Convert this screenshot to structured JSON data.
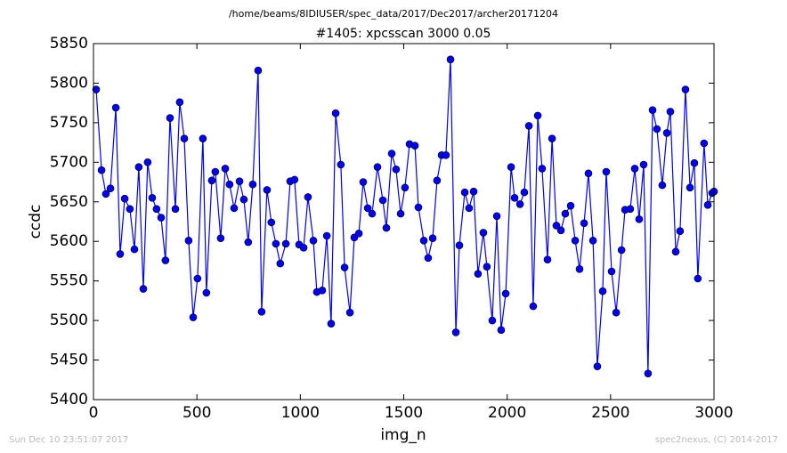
{
  "chart_data": {
    "type": "line",
    "title": "/home/beams/8IDIUSER/spec_data/2017/Dec2017/archer20171204",
    "subtitle": "#1405: xpcsscan 3000 0.05",
    "xlabel": "img_n",
    "ylabel": "ccdc",
    "footer_left": "Sun Dec 10 23:51:07 2017",
    "footer_right": "spec2nexus, (C) 2014-2017",
    "color": "#0000ff",
    "markers": true,
    "xlim": [
      0,
      3000
    ],
    "xticks": [
      0,
      500,
      1000,
      1500,
      2000,
      2500,
      3000
    ],
    "ylim": [
      5400,
      5850
    ],
    "yticks": [
      5400,
      5450,
      5500,
      5550,
      5600,
      5650,
      5700,
      5750,
      5800,
      5850
    ],
    "x": [
      13,
      39,
      60,
      82,
      108,
      129,
      151,
      176,
      198,
      219,
      241,
      262,
      284,
      305,
      327,
      348,
      370,
      396,
      417,
      439,
      460,
      482,
      503,
      529,
      546,
      572,
      589,
      615,
      637,
      658,
      680,
      706,
      727,
      748,
      770,
      796,
      813,
      839,
      860,
      882,
      903,
      930,
      951,
      972,
      994,
      1016,
      1037,
      1063,
      1080,
      1106,
      1128,
      1149,
      1171,
      1196,
      1214,
      1240,
      1261,
      1283,
      1304,
      1326,
      1347,
      1373,
      1399,
      1416,
      1442,
      1463,
      1485,
      1506,
      1528,
      1554,
      1571,
      1597,
      1618,
      1640,
      1661,
      1683,
      1704,
      1726,
      1752,
      1769,
      1795,
      1816,
      1838,
      1859,
      1885,
      1902,
      1928,
      1950,
      1971,
      1993,
      2019,
      2036,
      2062,
      2083,
      2105,
      2126,
      2148,
      2169,
      2195,
      2217,
      2238,
      2260,
      2281,
      2307,
      2329,
      2350,
      2372,
      2393,
      2415,
      2436,
      2462,
      2479,
      2505,
      2527,
      2553,
      2570,
      2595,
      2617,
      2638,
      2660,
      2681,
      2703,
      2724,
      2750,
      2772,
      2789,
      2815,
      2836,
      2862,
      2884,
      2905,
      2922,
      2952,
      2970,
      2991,
      3000
    ],
    "values": [
      5792,
      5690,
      5660,
      5667,
      5769,
      5584,
      5654,
      5641,
      5590,
      5694,
      5540,
      5700,
      5655,
      5641,
      5630,
      5576,
      5756,
      5641,
      5776,
      5730,
      5601,
      5504,
      5553,
      5730,
      5535,
      5677,
      5688,
      5604,
      5692,
      5672,
      5642,
      5676,
      5653,
      5599,
      5672,
      5816,
      5511,
      5665,
      5624,
      5597,
      5572,
      5597,
      5676,
      5678,
      5596,
      5592,
      5656,
      5601,
      5536,
      5538,
      5607,
      5496,
      5762,
      5697,
      5567,
      5510,
      5605,
      5610,
      5675,
      5642,
      5635,
      5694,
      5652,
      5617,
      5711,
      5691,
      5635,
      5668,
      5723,
      5721,
      5643,
      5601,
      5579,
      5604,
      5677,
      5709,
      5709,
      5830,
      5485,
      5595,
      5662,
      5642,
      5663,
      5559,
      5611,
      5568,
      5500,
      5632,
      5488,
      5534,
      5694,
      5655,
      5647,
      5662,
      5746,
      5518,
      5759,
      5692,
      5577,
      5730,
      5620,
      5614,
      5635,
      5645,
      5601,
      5565,
      5623,
      5686,
      5601,
      5442,
      5537,
      5688,
      5562,
      5510,
      5589,
      5640,
      5641,
      5692,
      5628,
      5697,
      5433,
      5766,
      5742,
      5671,
      5737,
      5764,
      5587,
      5613,
      5792,
      5668,
      5699,
      5553,
      5724,
      5646,
      5661,
      5663
    ]
  }
}
